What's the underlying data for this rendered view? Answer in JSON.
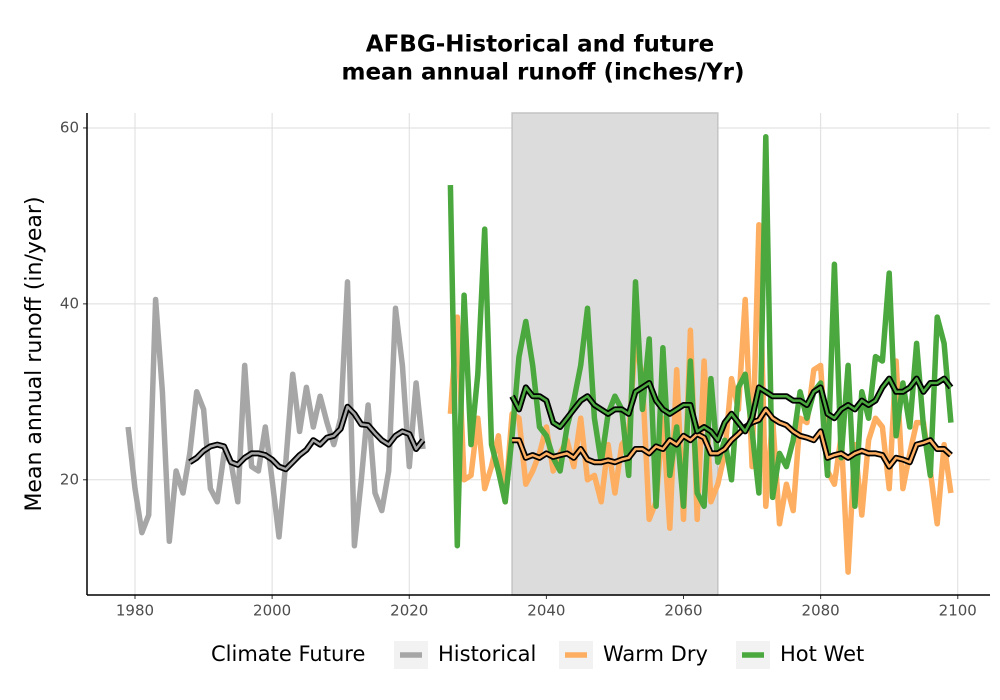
{
  "chart_data": {
    "type": "line",
    "title": [
      "AFBG-Historical and future",
      "mean annual runoff (inches/Yr)"
    ],
    "y_label": "Mean annual runoff (in/year)",
    "legend_title": "Climate Future",
    "legend_position": "bottom",
    "grid": true,
    "xlim": [
      1973,
      2104.7
    ],
    "ylim": [
      6.9,
      61.7
    ],
    "xticks": [
      1980,
      2000,
      2020,
      2040,
      2060,
      2080,
      2100
    ],
    "yticks": [
      20,
      40,
      60
    ],
    "shade": [
      2035,
      2065
    ],
    "series": [
      {
        "name": "Historical",
        "color": "#a6a6a6",
        "x": [
          1979,
          1980,
          1981,
          1982,
          1983,
          1984,
          1985,
          1986,
          1987,
          1988,
          1989,
          1990,
          1991,
          1992,
          1993,
          1994,
          1995,
          1996,
          1997,
          1998,
          1999,
          2000,
          2001,
          2002,
          2003,
          2004,
          2005,
          2006,
          2007,
          2008,
          2009,
          2010,
          2011,
          2012,
          2013,
          2014,
          2015,
          2016,
          2017,
          2018,
          2019,
          2020,
          2021,
          2022
        ],
        "values": [
          26,
          19,
          14,
          16,
          40.5,
          30,
          13,
          21,
          18.5,
          23,
          30,
          28,
          19,
          17.5,
          23,
          22,
          17.5,
          33,
          21.5,
          21,
          26,
          20,
          13.5,
          22,
          32,
          25.5,
          30.5,
          26,
          29.5,
          26.5,
          24,
          27,
          42.5,
          12.5,
          20,
          28.5,
          18.5,
          16.5,
          21,
          39.5,
          33,
          21.5,
          31,
          23.5
        ],
        "rolling": [
          null,
          null,
          null,
          null,
          null,
          null,
          null,
          null,
          null,
          22,
          22.5,
          23.3,
          23.8,
          24,
          23.8,
          22,
          21.7,
          22.5,
          23,
          23,
          22.8,
          22.3,
          21.5,
          21.2,
          22,
          22.8,
          23.4,
          24.5,
          24,
          24.8,
          25,
          25.8,
          28.3,
          27.5,
          26.3,
          26.2,
          25.3,
          24.5,
          24,
          25,
          25.5,
          25.2,
          23.5,
          24.5
        ]
      },
      {
        "name": "Warm Dry",
        "color": "#fdae61",
        "x": [
          2026,
          2027,
          2028,
          2029,
          2030,
          2031,
          2032,
          2033,
          2034,
          2035,
          2036,
          2037,
          2038,
          2039,
          2040,
          2041,
          2042,
          2043,
          2044,
          2045,
          2046,
          2047,
          2048,
          2049,
          2050,
          2051,
          2052,
          2053,
          2054,
          2055,
          2056,
          2057,
          2058,
          2059,
          2060,
          2061,
          2062,
          2063,
          2064,
          2065,
          2066,
          2067,
          2068,
          2069,
          2070,
          2071,
          2072,
          2073,
          2074,
          2075,
          2076,
          2077,
          2078,
          2079,
          2080,
          2081,
          2082,
          2083,
          2084,
          2085,
          2086,
          2087,
          2088,
          2089,
          2090,
          2091,
          2092,
          2093,
          2094,
          2095,
          2096,
          2097,
          2098,
          2099
        ],
        "values": [
          27.5,
          38.5,
          20,
          20.5,
          27,
          19,
          21.5,
          25,
          17.5,
          27.5,
          27,
          19.5,
          21,
          23,
          26,
          21,
          23,
          24.5,
          21.5,
          27,
          20,
          20.5,
          17.5,
          24,
          18.5,
          24,
          25,
          36,
          31.5,
          15.5,
          17.5,
          27,
          14.5,
          32.5,
          15.5,
          37,
          15.5,
          33.5,
          17.5,
          19.5,
          23,
          31.5,
          28,
          40.5,
          21.5,
          49,
          17,
          27,
          15,
          19.5,
          16.5,
          27,
          26.5,
          32.5,
          33,
          21,
          19.5,
          25,
          9.5,
          24,
          16,
          24.5,
          27,
          26,
          19,
          33.5,
          19,
          23,
          26.5,
          26.5,
          21,
          15,
          24,
          18.5
        ],
        "rolling": [
          null,
          null,
          null,
          null,
          null,
          null,
          null,
          null,
          null,
          24.5,
          24.5,
          22.5,
          22.8,
          22.5,
          23,
          22.6,
          22.8,
          23,
          22.5,
          23.5,
          22.3,
          22,
          22,
          22.2,
          22,
          22.3,
          22.5,
          23.5,
          23.5,
          23,
          23.8,
          23.5,
          24.5,
          24,
          25,
          24.5,
          25.2,
          24.8,
          23,
          23,
          23.5,
          24.5,
          25.2,
          26,
          26.5,
          26.8,
          28,
          27,
          26.5,
          26.2,
          25.5,
          25,
          24.8,
          24.5,
          25.5,
          22.5,
          22.8,
          23,
          22.5,
          23,
          23.3,
          23,
          23,
          22.8,
          21.5,
          22.5,
          22.3,
          22,
          24,
          24.2,
          24.5,
          23.5,
          23.5,
          22.8
        ]
      },
      {
        "name": "Hot Wet",
        "color": "#4aa83e",
        "x": [
          2026,
          2027,
          2028,
          2029,
          2030,
          2031,
          2032,
          2033,
          2034,
          2035,
          2036,
          2037,
          2038,
          2039,
          2040,
          2041,
          2042,
          2043,
          2044,
          2045,
          2046,
          2047,
          2048,
          2049,
          2050,
          2051,
          2052,
          2053,
          2054,
          2055,
          2056,
          2057,
          2058,
          2059,
          2060,
          2061,
          2062,
          2063,
          2064,
          2065,
          2066,
          2067,
          2068,
          2069,
          2070,
          2071,
          2072,
          2073,
          2074,
          2075,
          2076,
          2077,
          2078,
          2079,
          2080,
          2081,
          2082,
          2083,
          2084,
          2085,
          2086,
          2087,
          2088,
          2089,
          2090,
          2091,
          2092,
          2093,
          2094,
          2095,
          2096,
          2097,
          2098,
          2099
        ],
        "values": [
          53.5,
          12.5,
          41,
          24,
          32,
          48.5,
          24,
          21,
          17.5,
          25,
          34,
          38,
          33,
          26,
          25,
          22.5,
          21,
          26,
          29,
          33,
          39.5,
          27,
          22,
          27.5,
          29.5,
          28,
          20.5,
          42.5,
          28,
          36,
          17,
          35,
          20.5,
          26,
          17,
          33.5,
          18.5,
          17,
          31.5,
          22,
          24.5,
          20,
          30.5,
          32,
          25.5,
          18.5,
          59,
          18,
          23,
          21.5,
          24.5,
          30,
          27,
          30,
          31,
          20.5,
          44.5,
          22.5,
          33,
          17,
          30,
          27,
          34,
          33.5,
          43.5,
          25,
          31,
          26,
          35.5,
          26,
          20.5,
          38.5,
          35.5,
          26.5
        ],
        "rolling": [
          null,
          null,
          null,
          null,
          null,
          null,
          null,
          null,
          null,
          29.5,
          28,
          30.5,
          29.5,
          29.5,
          29,
          26.5,
          26,
          27,
          28,
          29,
          29.5,
          28.5,
          28,
          27.5,
          28,
          28,
          27.5,
          30,
          30.5,
          31,
          29,
          28,
          27.5,
          28,
          28.5,
          28.5,
          25.5,
          26,
          25.5,
          24.5,
          26.5,
          27.5,
          26.5,
          25.5,
          27,
          30.5,
          30,
          29.5,
          29.5,
          29.5,
          29,
          29,
          28.5,
          30,
          30.5,
          27.5,
          27,
          28,
          28.5,
          28,
          29,
          28.5,
          29,
          30.5,
          31.5,
          30,
          30,
          30.5,
          31.5,
          30,
          31,
          31,
          31.5,
          30.5
        ]
      }
    ]
  }
}
